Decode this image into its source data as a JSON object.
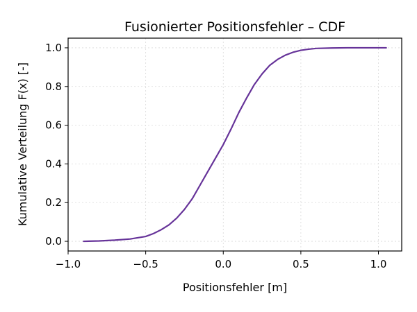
{
  "chart_data": {
    "type": "line",
    "title": "Fusionierter Positionsfehler – CDF",
    "xlabel": "Positionsfehler [m]",
    "ylabel": "Kumulative Verteilung F(x) [-]",
    "xlim": [
      -1.0,
      1.15
    ],
    "ylim": [
      -0.05,
      1.05
    ],
    "xticks": [
      -1.0,
      -0.5,
      0.0,
      0.5,
      1.0
    ],
    "xtick_labels": [
      "−1.0",
      "−0.5",
      "0.0",
      "0.5",
      "1.0"
    ],
    "yticks": [
      0.0,
      0.2,
      0.4,
      0.6,
      0.8,
      1.0
    ],
    "ytick_labels": [
      "0.0",
      "0.2",
      "0.4",
      "0.6",
      "0.8",
      "1.0"
    ],
    "grid": true,
    "series": [
      {
        "color": "#663399",
        "x": [
          -0.9,
          -0.8,
          -0.7,
          -0.6,
          -0.5,
          -0.45,
          -0.4,
          -0.35,
          -0.3,
          -0.25,
          -0.2,
          -0.15,
          -0.1,
          -0.05,
          0.0,
          0.05,
          0.1,
          0.15,
          0.2,
          0.25,
          0.3,
          0.35,
          0.4,
          0.45,
          0.5,
          0.55,
          0.6,
          0.7,
          0.8,
          0.9,
          1.05
        ],
        "y": [
          0.0,
          0.002,
          0.006,
          0.012,
          0.025,
          0.04,
          0.06,
          0.085,
          0.12,
          0.165,
          0.22,
          0.29,
          0.36,
          0.43,
          0.5,
          0.58,
          0.665,
          0.74,
          0.81,
          0.865,
          0.91,
          0.94,
          0.962,
          0.977,
          0.987,
          0.993,
          0.997,
          0.999,
          1.0,
          1.0,
          1.0
        ]
      }
    ]
  }
}
